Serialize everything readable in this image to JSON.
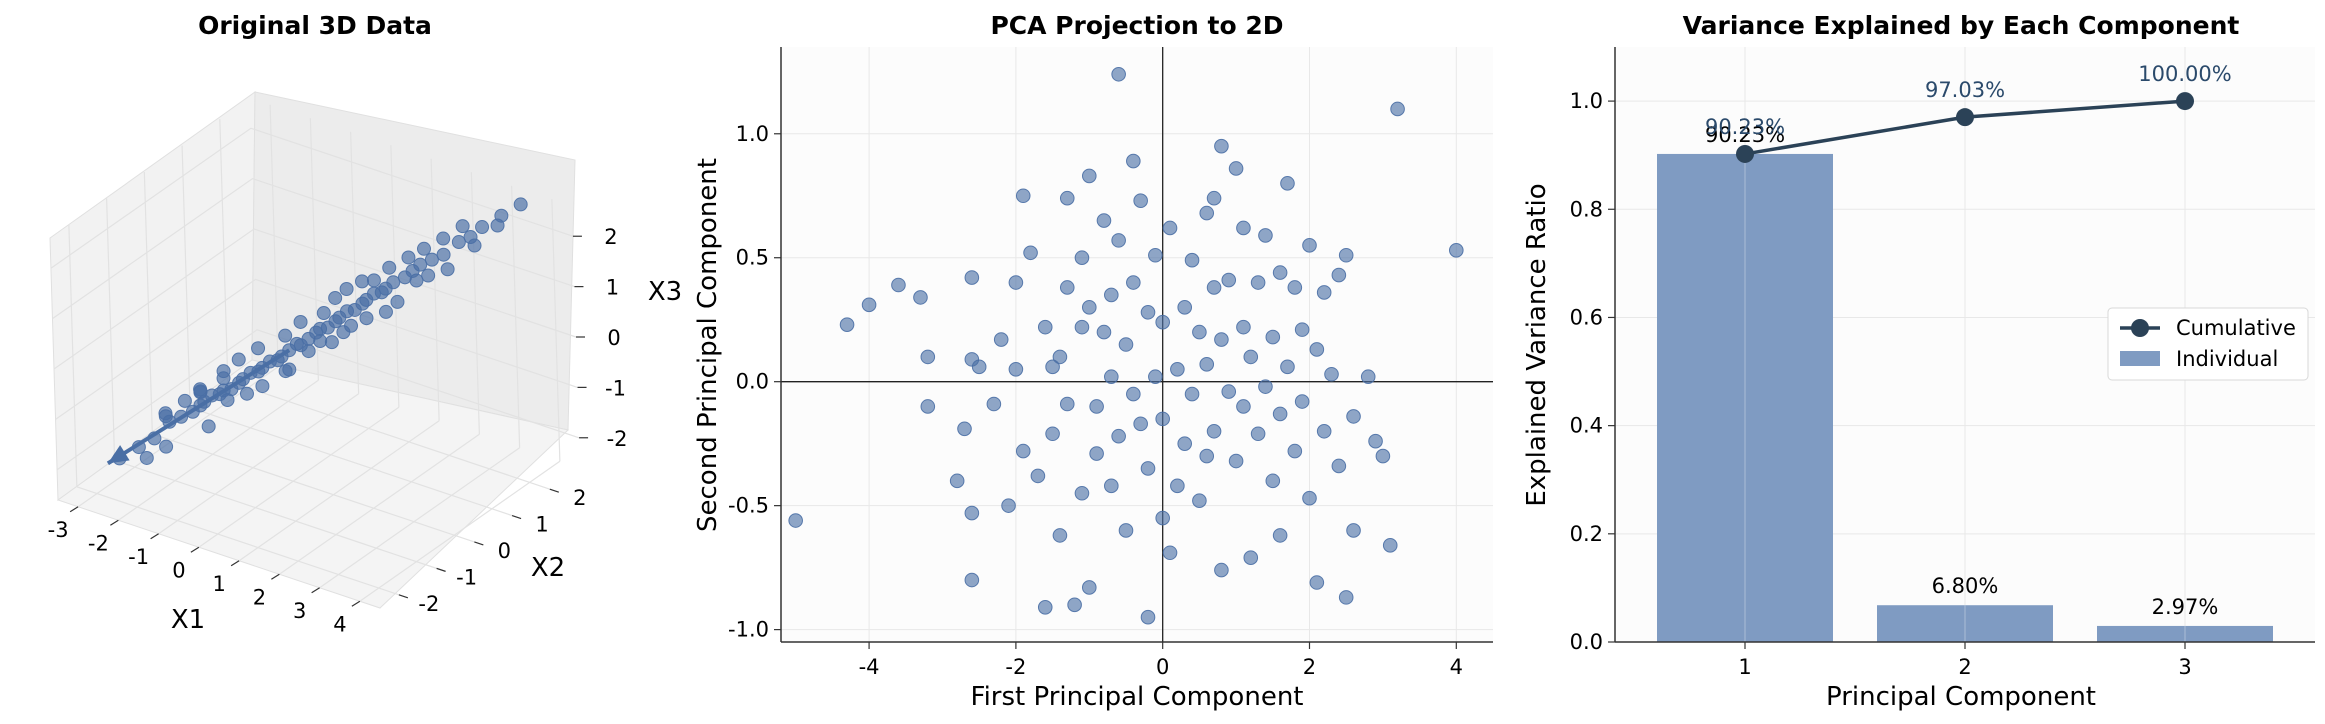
{
  "colors": {
    "point": "#4a6fa5",
    "bar": "#7f9bc2",
    "cumulative_line": "#2b4257",
    "cumulative_text": "#2b4a6b",
    "plane": "#f2f2f2",
    "grid": "#e8e8e8"
  },
  "chart_data": [
    {
      "type": "scatter3d",
      "title": "Original 3D Data",
      "xlabel": "X1",
      "ylabel": "X2",
      "zlabel": "X3",
      "xticks": [
        "-3",
        "-2",
        "-1",
        "0",
        "1",
        "2",
        "3",
        "4"
      ],
      "yticks": [
        "-2",
        "-1",
        "0",
        "1",
        "2"
      ],
      "zticks": [
        "-2",
        "-1",
        "0",
        "1",
        "2"
      ],
      "xlim": [
        -3.5,
        4.5
      ],
      "ylim": [
        -2.5,
        2.8
      ],
      "zlim": [
        -2.6,
        2.6
      ],
      "grid": true,
      "arrow": {
        "description": "principal axis",
        "from": [
          0,
          0,
          0
        ],
        "to": [
          -2.8,
          -1.9,
          -2.0
        ]
      },
      "points": [
        [
          -2.6,
          -1.8,
          -1.9
        ],
        [
          -2.3,
          -1.6,
          -1.7
        ],
        [
          -2.0,
          -1.5,
          -1.5
        ],
        [
          -1.9,
          -1.2,
          -1.3
        ],
        [
          -1.7,
          -1.1,
          -1.2
        ],
        [
          -1.5,
          -1.0,
          -1.1
        ],
        [
          -1.4,
          -0.9,
          -1.0
        ],
        [
          -1.3,
          -0.9,
          -0.9
        ],
        [
          -1.2,
          -0.8,
          -0.8
        ],
        [
          -1.1,
          -0.7,
          -0.8
        ],
        [
          -1.0,
          -0.7,
          -0.7
        ],
        [
          -0.9,
          -0.6,
          -0.7
        ],
        [
          -0.8,
          -0.5,
          -0.6
        ],
        [
          -0.7,
          -0.5,
          -0.5
        ],
        [
          -0.6,
          -0.4,
          -0.4
        ],
        [
          -0.5,
          -0.3,
          -0.4
        ],
        [
          -0.4,
          -0.3,
          -0.3
        ],
        [
          -0.3,
          -0.2,
          -0.2
        ],
        [
          -0.2,
          -0.1,
          -0.2
        ],
        [
          -0.1,
          -0.1,
          -0.1
        ],
        [
          0.0,
          0.0,
          0.0
        ],
        [
          0.1,
          0.1,
          0.1
        ],
        [
          0.2,
          0.1,
          0.1
        ],
        [
          0.3,
          0.2,
          0.2
        ],
        [
          0.4,
          0.3,
          0.3
        ],
        [
          0.5,
          0.3,
          0.4
        ],
        [
          0.6,
          0.4,
          0.4
        ],
        [
          0.7,
          0.5,
          0.5
        ],
        [
          0.8,
          0.5,
          0.6
        ],
        [
          0.9,
          0.6,
          0.7
        ],
        [
          1.0,
          0.7,
          0.7
        ],
        [
          1.1,
          0.8,
          0.8
        ],
        [
          1.2,
          0.8,
          0.9
        ],
        [
          1.3,
          0.9,
          1.0
        ],
        [
          1.4,
          1.0,
          1.0
        ],
        [
          1.5,
          1.0,
          1.1
        ],
        [
          1.6,
          1.1,
          1.2
        ],
        [
          1.8,
          1.2,
          1.3
        ],
        [
          1.9,
          1.3,
          1.4
        ],
        [
          2.0,
          1.4,
          1.5
        ],
        [
          2.2,
          1.5,
          1.6
        ],
        [
          2.4,
          1.6,
          1.7
        ],
        [
          2.6,
          1.8,
          1.9
        ],
        [
          2.8,
          1.9,
          2.0
        ],
        [
          3.0,
          2.0,
          2.2
        ],
        [
          3.3,
          2.2,
          2.4
        ],
        [
          3.6,
          2.4,
          2.6
        ],
        [
          -1.8,
          -1.4,
          -1.0
        ],
        [
          -1.2,
          -0.4,
          -1.1
        ],
        [
          -0.8,
          -0.9,
          -0.3
        ],
        [
          -0.3,
          0.2,
          -0.6
        ],
        [
          0.2,
          -0.3,
          0.5
        ],
        [
          0.6,
          0.8,
          0.1
        ],
        [
          1.0,
          0.2,
          1.2
        ],
        [
          1.4,
          1.4,
          0.6
        ],
        [
          1.8,
          0.8,
          1.7
        ],
        [
          2.2,
          1.9,
          1.2
        ],
        [
          -1.5,
          -0.6,
          -1.6
        ],
        [
          -0.6,
          -1.1,
          0.0
        ],
        [
          0.4,
          0.7,
          -0.1
        ],
        [
          0.8,
          0.1,
          0.9
        ],
        [
          1.2,
          1.3,
          0.4
        ],
        [
          -2.1,
          -1.1,
          -1.9
        ],
        [
          -1.0,
          -1.3,
          -0.4
        ],
        [
          -0.4,
          0.4,
          -0.7
        ],
        [
          0.5,
          -0.2,
          0.8
        ],
        [
          1.6,
          0.6,
          1.5
        ],
        [
          2.5,
          1.5,
          2.1
        ],
        [
          -1.6,
          -1.6,
          -0.9
        ],
        [
          -0.2,
          -0.6,
          0.3
        ],
        [
          0.9,
          1.1,
          0.3
        ],
        [
          1.7,
          1.6,
          1.0
        ],
        [
          2.9,
          1.6,
          2.4
        ],
        [
          -0.9,
          -0.2,
          -1.0
        ],
        [
          0.3,
          0.5,
          0.0
        ],
        [
          1.1,
          0.4,
          1.3
        ],
        [
          -1.4,
          -1.3,
          -0.7
        ],
        [
          -0.5,
          -0.8,
          0.1
        ],
        [
          0.7,
          0.9,
          0.2
        ],
        [
          2.0,
          1.1,
          1.8
        ],
        [
          2.7,
          2.1,
          1.7
        ],
        [
          -2.4,
          -1.3,
          -2.1
        ],
        [
          -1.3,
          -1.0,
          -0.6
        ],
        [
          -0.7,
          0.0,
          -0.9
        ],
        [
          0.1,
          0.4,
          -0.2
        ],
        [
          1.3,
          0.6,
          1.4
        ],
        [
          1.9,
          1.7,
          1.1
        ],
        [
          2.3,
          1.2,
          2.0
        ],
        [
          3.1,
          2.3,
          2.1
        ],
        [
          -1.1,
          -1.2,
          -0.5
        ]
      ]
    },
    {
      "type": "scatter",
      "title": "PCA Projection to 2D",
      "xlabel": "First Principal Component",
      "ylabel": "Second Principal Component",
      "xlim": [
        -5.2,
        4.5
      ],
      "ylim": [
        -1.05,
        1.35
      ],
      "xticks": [
        -4,
        -2,
        0,
        2,
        4
      ],
      "yticks": [
        -1.0,
        -0.5,
        0.0,
        0.5,
        1.0
      ],
      "grid": true,
      "reference_lines": [
        "x=0",
        "y=0"
      ],
      "points": [
        [
          -5.0,
          -0.56
        ],
        [
          -4.3,
          0.23
        ],
        [
          -4.0,
          0.31
        ],
        [
          -3.6,
          0.39
        ],
        [
          -3.3,
          0.34
        ],
        [
          -3.2,
          0.1
        ],
        [
          -3.2,
          -0.1
        ],
        [
          -2.8,
          -0.4
        ],
        [
          -2.7,
          -0.19
        ],
        [
          -2.6,
          -0.8
        ],
        [
          -2.6,
          -0.53
        ],
        [
          -2.6,
          0.42
        ],
        [
          -2.6,
          0.09
        ],
        [
          -2.5,
          0.06
        ],
        [
          -2.3,
          -0.09
        ],
        [
          -2.2,
          0.17
        ],
        [
          -2.1,
          -0.5
        ],
        [
          -2.0,
          0.4
        ],
        [
          -2.0,
          0.05
        ],
        [
          -1.9,
          0.75
        ],
        [
          -1.9,
          -0.28
        ],
        [
          -1.8,
          0.52
        ],
        [
          -1.7,
          -0.38
        ],
        [
          -1.6,
          -0.91
        ],
        [
          -1.6,
          0.22
        ],
        [
          -1.5,
          0.06
        ],
        [
          -1.5,
          -0.21
        ],
        [
          -1.4,
          0.1
        ],
        [
          -1.4,
          -0.62
        ],
        [
          -1.3,
          0.74
        ],
        [
          -1.3,
          0.38
        ],
        [
          -1.3,
          -0.09
        ],
        [
          -1.2,
          -0.9
        ],
        [
          -1.1,
          0.5
        ],
        [
          -1.1,
          -0.45
        ],
        [
          -1.1,
          0.22
        ],
        [
          -1.0,
          -0.83
        ],
        [
          -1.0,
          0.83
        ],
        [
          -1.0,
          0.3
        ],
        [
          -0.9,
          -0.1
        ],
        [
          -0.9,
          -0.29
        ],
        [
          -0.8,
          0.2
        ],
        [
          -0.8,
          0.65
        ],
        [
          -0.7,
          -0.42
        ],
        [
          -0.7,
          0.35
        ],
        [
          -0.7,
          0.02
        ],
        [
          -0.6,
          1.24
        ],
        [
          -0.6,
          0.57
        ],
        [
          -0.6,
          -0.22
        ],
        [
          -0.5,
          0.15
        ],
        [
          -0.5,
          -0.6
        ],
        [
          -0.4,
          0.89
        ],
        [
          -0.4,
          0.4
        ],
        [
          -0.4,
          -0.05
        ],
        [
          -0.3,
          -0.17
        ],
        [
          -0.3,
          0.73
        ],
        [
          -0.2,
          -0.95
        ],
        [
          -0.2,
          0.28
        ],
        [
          -0.2,
          -0.35
        ],
        [
          -0.1,
          0.02
        ],
        [
          -0.1,
          0.51
        ],
        [
          0.0,
          -0.55
        ],
        [
          0.0,
          0.24
        ],
        [
          0.0,
          -0.15
        ],
        [
          0.1,
          0.62
        ],
        [
          0.1,
          -0.69
        ],
        [
          0.2,
          0.05
        ],
        [
          0.2,
          -0.42
        ],
        [
          0.3,
          0.3
        ],
        [
          0.3,
          -0.25
        ],
        [
          0.4,
          0.49
        ],
        [
          0.4,
          -0.05
        ],
        [
          0.5,
          -0.48
        ],
        [
          0.5,
          0.2
        ],
        [
          0.6,
          0.68
        ],
        [
          0.6,
          0.07
        ],
        [
          0.6,
          -0.3
        ],
        [
          0.7,
          0.74
        ],
        [
          0.7,
          0.38
        ],
        [
          0.7,
          -0.2
        ],
        [
          0.8,
          0.95
        ],
        [
          0.8,
          -0.76
        ],
        [
          0.8,
          0.17
        ],
        [
          0.9,
          -0.04
        ],
        [
          0.9,
          0.41
        ],
        [
          1.0,
          0.86
        ],
        [
          1.0,
          -0.32
        ],
        [
          1.1,
          -0.1
        ],
        [
          1.1,
          0.22
        ],
        [
          1.1,
          0.62
        ],
        [
          1.2,
          -0.71
        ],
        [
          1.2,
          0.1
        ],
        [
          1.3,
          -0.21
        ],
        [
          1.3,
          0.4
        ],
        [
          1.4,
          0.59
        ],
        [
          1.4,
          -0.02
        ],
        [
          1.5,
          -0.4
        ],
        [
          1.5,
          0.18
        ],
        [
          1.6,
          -0.62
        ],
        [
          1.6,
          0.44
        ],
        [
          1.6,
          -0.13
        ],
        [
          1.7,
          0.8
        ],
        [
          1.7,
          0.06
        ],
        [
          1.8,
          -0.28
        ],
        [
          1.8,
          0.38
        ],
        [
          1.9,
          0.21
        ],
        [
          1.9,
          -0.08
        ],
        [
          2.0,
          0.55
        ],
        [
          2.0,
          -0.47
        ],
        [
          2.1,
          -0.81
        ],
        [
          2.1,
          0.13
        ],
        [
          2.2,
          -0.2
        ],
        [
          2.2,
          0.36
        ],
        [
          2.3,
          0.03
        ],
        [
          2.4,
          0.43
        ],
        [
          2.4,
          -0.34
        ],
        [
          2.5,
          0.51
        ],
        [
          2.5,
          -0.87
        ],
        [
          2.6,
          -0.6
        ],
        [
          2.6,
          -0.14
        ],
        [
          2.8,
          0.02
        ],
        [
          2.9,
          -0.24
        ],
        [
          3.0,
          -0.3
        ],
        [
          3.1,
          -0.66
        ],
        [
          3.2,
          1.1
        ],
        [
          4.0,
          0.53
        ]
      ]
    },
    {
      "type": "bar",
      "title": "Variance Explained by Each Component",
      "xlabel": "Principal Component",
      "ylabel": "Explained Variance Ratio",
      "categories": [
        "1",
        "2",
        "3"
      ],
      "ylim": [
        0,
        1.1
      ],
      "yticks": [
        0.0,
        0.2,
        0.4,
        0.6,
        0.8,
        1.0
      ],
      "grid": true,
      "legend_position": "center-right",
      "series": [
        {
          "name": "Individual",
          "kind": "bar",
          "values": [
            0.9023,
            0.068,
            0.0297
          ],
          "labels": [
            "90.23%",
            "6.80%",
            "2.97%"
          ]
        },
        {
          "name": "Cumulative",
          "kind": "line",
          "values": [
            0.9023,
            0.9703,
            1.0
          ],
          "labels": [
            "90.23%",
            "97.03%",
            "100.00%"
          ]
        }
      ]
    }
  ]
}
